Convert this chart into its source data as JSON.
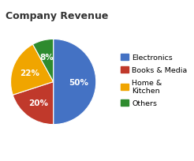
{
  "title": "Company Revenue",
  "slices": [
    50,
    20,
    22,
    8
  ],
  "labels": [
    "Electronics",
    "Books & Media",
    "Home &\nKitchen",
    "Others"
  ],
  "colors": [
    "#4472C4",
    "#C0392B",
    "#F0A500",
    "#2E8B2E"
  ],
  "pct_labels": [
    "50%",
    "20%",
    "22%",
    "8%"
  ],
  "legend_labels": [
    "Electronics",
    "Books & Media",
    "Home &\nKitchen",
    "Others"
  ],
  "title_fontsize": 9,
  "pct_fontsize": 7.5,
  "background_color": "#ffffff",
  "startangle": 90
}
